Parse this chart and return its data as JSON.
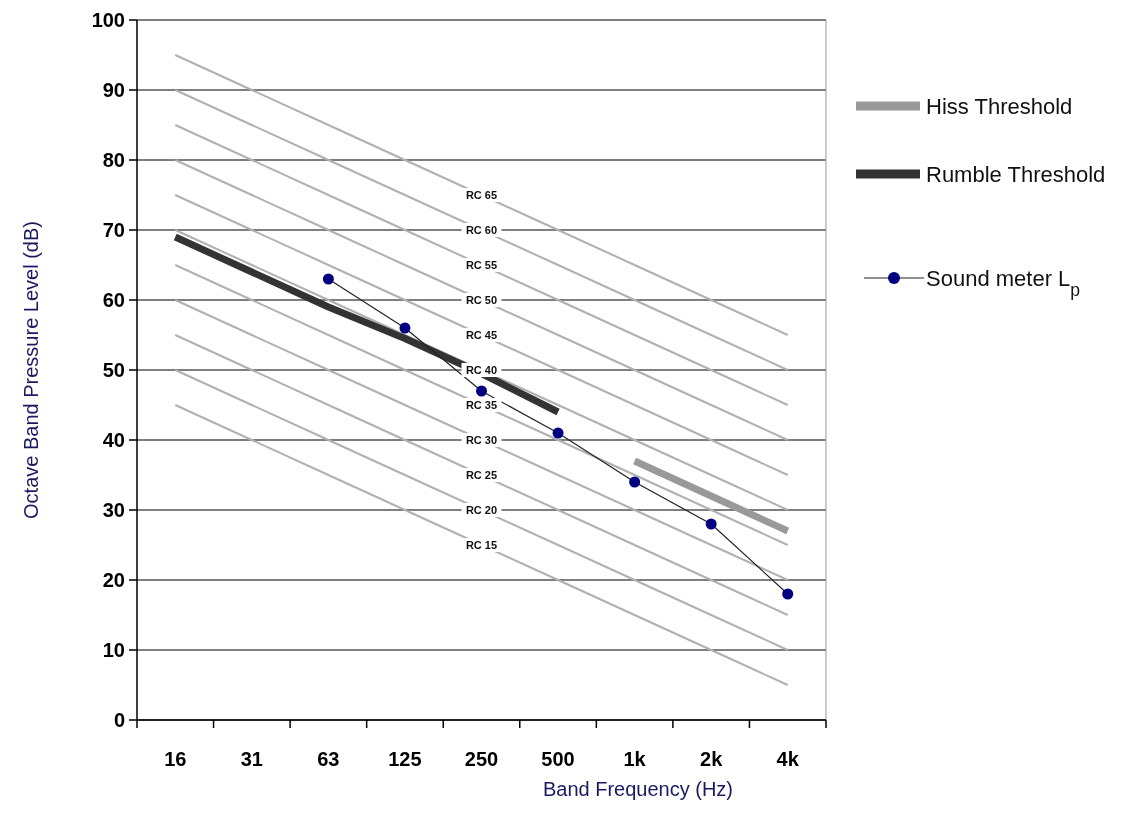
{
  "chart_data": {
    "type": "line",
    "xlabel": "Band Frequency (Hz)",
    "ylabel": "Octave Band Pressure Level (dB)",
    "categories": [
      "16",
      "31",
      "63",
      "125",
      "250",
      "500",
      "1k",
      "2k",
      "4k"
    ],
    "ylim": [
      0,
      100
    ],
    "yticks": [
      0,
      10,
      20,
      30,
      40,
      50,
      60,
      70,
      80,
      90,
      100
    ],
    "grid": "y",
    "legend": "top right",
    "series": [
      {
        "color": "#b0b0b0",
        "values": [
          95,
          90,
          85,
          80,
          75,
          70,
          65,
          60,
          55
        ]
      },
      {
        "color": "#b0b0b0",
        "values": [
          90,
          85,
          80,
          75,
          70,
          65,
          60,
          55,
          50
        ]
      },
      {
        "color": "#b0b0b0",
        "values": [
          85,
          80,
          75,
          70,
          65,
          60,
          55,
          50,
          45
        ]
      },
      {
        "color": "#b0b0b0",
        "values": [
          80,
          75,
          70,
          65,
          60,
          55,
          50,
          45,
          40
        ]
      },
      {
        "color": "#b0b0b0",
        "values": [
          75,
          70,
          65,
          60,
          55,
          50,
          45,
          40,
          35
        ]
      },
      {
        "color": "#b0b0b0",
        "values": [
          70,
          65,
          60,
          55,
          50,
          45,
          40,
          35,
          30
        ]
      },
      {
        "color": "#b0b0b0",
        "values": [
          65,
          60,
          55,
          50,
          45,
          40,
          35,
          30,
          25
        ]
      },
      {
        "color": "#b0b0b0",
        "values": [
          60,
          55,
          50,
          45,
          40,
          35,
          30,
          25,
          20
        ]
      },
      {
        "color": "#b0b0b0",
        "values": [
          55,
          50,
          45,
          40,
          35,
          30,
          25,
          20,
          15
        ]
      },
      {
        "color": "#b0b0b0",
        "values": [
          50,
          45,
          40,
          35,
          30,
          25,
          20,
          15,
          10
        ]
      },
      {
        "color": "#b0b0b0",
        "values": [
          45,
          40,
          35,
          30,
          25,
          20,
          15,
          10,
          5
        ]
      },
      {
        "name": "Hiss Threshold",
        "color": "#999999",
        "values": [
          null,
          null,
          null,
          null,
          null,
          null,
          37,
          32,
          27
        ]
      },
      {
        "name": "Rumble Threshold",
        "color": "#333333",
        "values": [
          69,
          64,
          59,
          54.5,
          49.5,
          44,
          null,
          null,
          null
        ]
      },
      {
        "name": "Sound meter L$_{p}$",
        "color": "#000080",
        "marker": "circle",
        "values": [
          null,
          null,
          63,
          56,
          47,
          41,
          34,
          28,
          18
        ]
      }
    ],
    "annotations": [
      {
        "text": "RC 65",
        "x": "250",
        "y": 75
      },
      {
        "text": "RC 60",
        "x": "250",
        "y": 70
      },
      {
        "text": "RC 55",
        "x": "250",
        "y": 65
      },
      {
        "text": "RC 50",
        "x": "250",
        "y": 60
      },
      {
        "text": "RC 45",
        "x": "250",
        "y": 55
      },
      {
        "text": "RC 40",
        "x": "250",
        "y": 50
      },
      {
        "text": "RC 35",
        "x": "250",
        "y": 45
      },
      {
        "text": "RC 30",
        "x": "250",
        "y": 40
      },
      {
        "text": "RC 25",
        "x": "250",
        "y": 35
      },
      {
        "text": "RC 20",
        "x": "250",
        "y": 30
      },
      {
        "text": "RC 15",
        "x": "250",
        "y": 25
      }
    ]
  }
}
